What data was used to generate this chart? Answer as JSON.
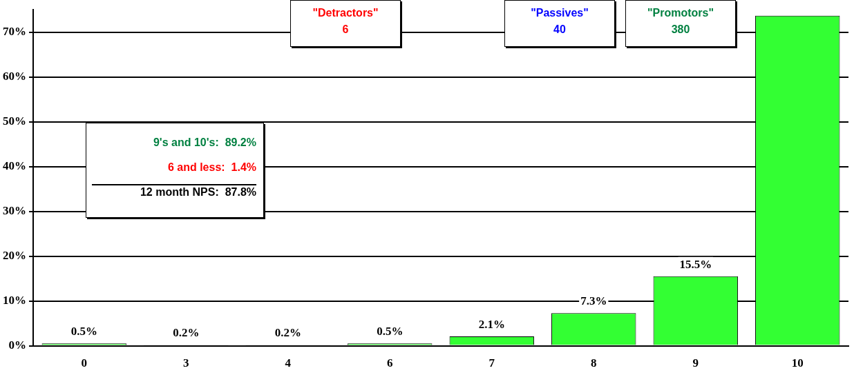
{
  "chart_data": {
    "type": "bar",
    "categories": [
      "0",
      "3",
      "4",
      "6",
      "7",
      "8",
      "9",
      "10"
    ],
    "series": [
      {
        "color": "#33ff33",
        "values": [
          0.5,
          0.2,
          0.2,
          0.5,
          2.1,
          7.3,
          15.5,
          73.7
        ],
        "value_labels": [
          "0.5%",
          "0.2%",
          "0.2%",
          "0.5%",
          "2.1%",
          "7.3%",
          "15.5%",
          null
        ]
      }
    ],
    "ylim": [
      0,
      75
    ],
    "yticks": [
      {
        "value": 0,
        "label": "0%"
      },
      {
        "value": 10,
        "label": "10%"
      },
      {
        "value": 20,
        "label": "20%"
      },
      {
        "value": 30,
        "label": "30%"
      },
      {
        "value": 40,
        "label": "40%"
      },
      {
        "value": 50,
        "label": "50%"
      },
      {
        "value": 60,
        "label": "60%"
      },
      {
        "value": 70,
        "label": "70%"
      }
    ],
    "grid": "y",
    "legend": false,
    "annotations": [
      "\"Detractors\"\n6",
      "\"Passives\"\n40",
      "\"Promotors\"\n380",
      "9's and 10's:  89.2%",
      "6 and less:  1.4%",
      "12 month NPS:  87.8%"
    ]
  }
}
